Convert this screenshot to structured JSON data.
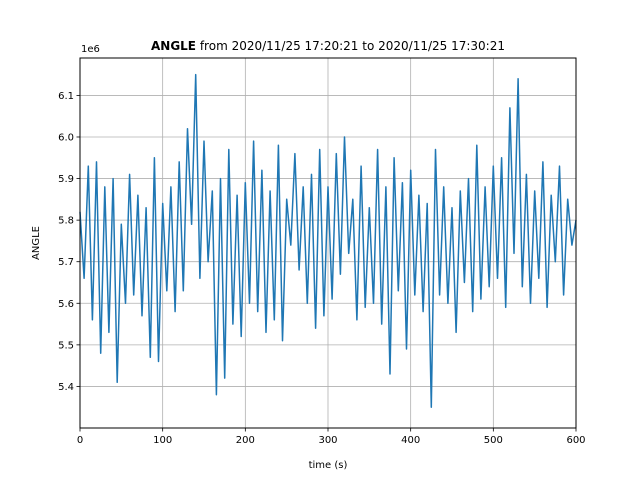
{
  "chart_data": {
    "type": "line",
    "title_bold": "ANGLE",
    "title_rest": " from 2020/11/25 17:20:21 to 2020/11/25 17:30:21",
    "xlabel": "time (s)",
    "ylabel": "ANGLE",
    "offset_text": "1e6",
    "xlim": [
      0,
      600
    ],
    "ylim": [
      5.3,
      6.19
    ],
    "x_ticks": [
      0,
      100,
      200,
      300,
      400,
      500,
      600
    ],
    "x_tick_labels": [
      "0",
      "100",
      "200",
      "300",
      "400",
      "500",
      "600"
    ],
    "y_ticks": [
      5.4,
      5.5,
      5.6,
      5.7,
      5.8,
      5.9,
      6.0,
      6.1
    ],
    "y_tick_labels": [
      "5.4",
      "5.5",
      "5.6",
      "5.7",
      "5.8",
      "5.9",
      "6.0",
      "6.1"
    ],
    "grid": true,
    "series": [
      {
        "color": "#1f77b4",
        "x": [
          0,
          5,
          10,
          15,
          20,
          25,
          30,
          35,
          40,
          45,
          50,
          55,
          60,
          65,
          70,
          75,
          80,
          85,
          90,
          95,
          100,
          105,
          110,
          115,
          120,
          125,
          130,
          135,
          140,
          145,
          150,
          155,
          160,
          165,
          170,
          175,
          180,
          185,
          190,
          195,
          200,
          205,
          210,
          215,
          220,
          225,
          230,
          235,
          240,
          245,
          250,
          255,
          260,
          265,
          270,
          275,
          280,
          285,
          290,
          295,
          300,
          305,
          310,
          315,
          320,
          325,
          330,
          335,
          340,
          345,
          350,
          355,
          360,
          365,
          370,
          375,
          380,
          385,
          390,
          395,
          400,
          405,
          410,
          415,
          420,
          425,
          430,
          435,
          440,
          445,
          450,
          455,
          460,
          465,
          470,
          475,
          480,
          485,
          490,
          495,
          500,
          505,
          510,
          515,
          520,
          525,
          530,
          535,
          540,
          545,
          550,
          555,
          560,
          565,
          570,
          575,
          580,
          585,
          590,
          595,
          600
        ],
        "values": [
          5.82,
          5.66,
          5.93,
          5.56,
          5.94,
          5.48,
          5.88,
          5.53,
          5.9,
          5.41,
          5.79,
          5.6,
          5.91,
          5.62,
          5.86,
          5.57,
          5.83,
          5.47,
          5.95,
          5.46,
          5.84,
          5.63,
          5.88,
          5.58,
          5.94,
          5.63,
          6.02,
          5.79,
          6.15,
          5.66,
          5.99,
          5.7,
          5.87,
          5.38,
          5.9,
          5.42,
          5.97,
          5.55,
          5.86,
          5.52,
          5.89,
          5.6,
          5.99,
          5.58,
          5.92,
          5.53,
          5.87,
          5.56,
          5.98,
          5.51,
          5.85,
          5.74,
          5.96,
          5.68,
          5.88,
          5.6,
          5.91,
          5.54,
          5.97,
          5.57,
          5.88,
          5.61,
          5.96,
          5.67,
          6.0,
          5.72,
          5.85,
          5.56,
          5.93,
          5.59,
          5.83,
          5.6,
          5.97,
          5.55,
          5.88,
          5.43,
          5.95,
          5.63,
          5.89,
          5.49,
          5.92,
          5.62,
          5.86,
          5.58,
          5.84,
          5.35,
          5.97,
          5.62,
          5.88,
          5.6,
          5.83,
          5.53,
          5.87,
          5.65,
          5.9,
          5.58,
          5.98,
          5.61,
          5.88,
          5.64,
          5.93,
          5.66,
          5.95,
          5.59,
          6.07,
          5.72,
          6.14,
          5.64,
          5.91,
          5.6,
          5.87,
          5.66,
          5.94,
          5.59,
          5.86,
          5.7,
          5.93,
          5.62,
          5.85,
          5.74,
          5.8
        ]
      }
    ]
  }
}
